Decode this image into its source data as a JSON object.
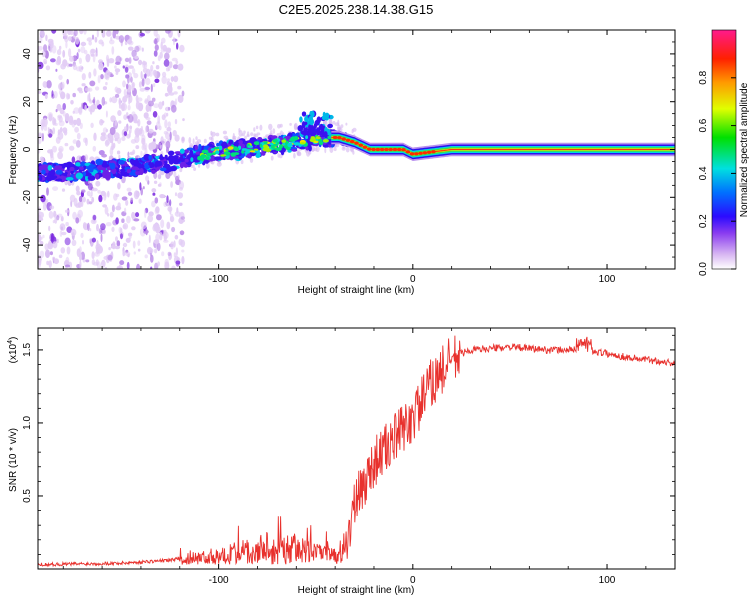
{
  "title": "C2E5.2025.238.14.38.G15",
  "chart_data": [
    {
      "type": "heatmap",
      "name": "spectrogram",
      "xlabel": "Height of straight line (km)",
      "ylabel": "Frequency (Hz)",
      "xlim": [
        -193,
        135
      ],
      "ylim": [
        -50,
        50
      ],
      "xticks": [
        -100,
        0,
        100
      ],
      "yticks": [
        -40,
        -20,
        0,
        20,
        40
      ],
      "colorbar": {
        "label": "Normalized spectral amplitude",
        "range": [
          0,
          1
        ],
        "ticks": [
          "0.0",
          "0.2",
          "0.4",
          "0.6",
          "0.8"
        ]
      },
      "ridge": [
        {
          "x": -193,
          "f": -10
        },
        {
          "x": -170,
          "f": -9
        },
        {
          "x": -150,
          "f": -8
        },
        {
          "x": -130,
          "f": -6
        },
        {
          "x": -115,
          "f": -3
        },
        {
          "x": -100,
          "f": -1
        },
        {
          "x": -80,
          "f": 1
        },
        {
          "x": -60,
          "f": 3
        },
        {
          "x": -45,
          "f": 5
        },
        {
          "x": -38,
          "f": 5
        },
        {
          "x": -30,
          "f": 3
        },
        {
          "x": -22,
          "f": 0
        },
        {
          "x": -5,
          "f": 0
        },
        {
          "x": 0,
          "f": -2
        },
        {
          "x": 10,
          "f": -1
        },
        {
          "x": 20,
          "f": 0
        },
        {
          "x": 135,
          "f": 0
        }
      ]
    },
    {
      "type": "line",
      "name": "snr",
      "xlabel": "Height of straight line (km)",
      "ylabel": "SNR (10 * v/v)",
      "scale_label": "(x10",
      "scale_exp": "4",
      "scale_close": ")",
      "xlim": [
        -193,
        135
      ],
      "ylim": [
        0,
        1.65
      ],
      "xticks": [
        -100,
        0,
        100
      ],
      "yticks": [
        0.5,
        1.0,
        1.5
      ],
      "color": "#e8312d",
      "envelope": [
        {
          "x": -193,
          "v": 0.03
        },
        {
          "x": -150,
          "v": 0.04
        },
        {
          "x": -125,
          "v": 0.06
        },
        {
          "x": -105,
          "v": 0.12
        },
        {
          "x": -90,
          "v": 0.18
        },
        {
          "x": -75,
          "v": 0.24
        },
        {
          "x": -60,
          "v": 0.22
        },
        {
          "x": -45,
          "v": 0.15
        },
        {
          "x": -36,
          "v": 0.1
        },
        {
          "x": -30,
          "v": 0.45
        },
        {
          "x": -20,
          "v": 0.75
        },
        {
          "x": -10,
          "v": 0.9
        },
        {
          "x": 0,
          "v": 1.05
        },
        {
          "x": 10,
          "v": 1.3
        },
        {
          "x": 20,
          "v": 1.45
        },
        {
          "x": 30,
          "v": 1.5
        },
        {
          "x": 50,
          "v": 1.52
        },
        {
          "x": 70,
          "v": 1.5
        },
        {
          "x": 90,
          "v": 1.5
        },
        {
          "x": 110,
          "v": 1.45
        },
        {
          "x": 135,
          "v": 1.41
        }
      ]
    }
  ]
}
